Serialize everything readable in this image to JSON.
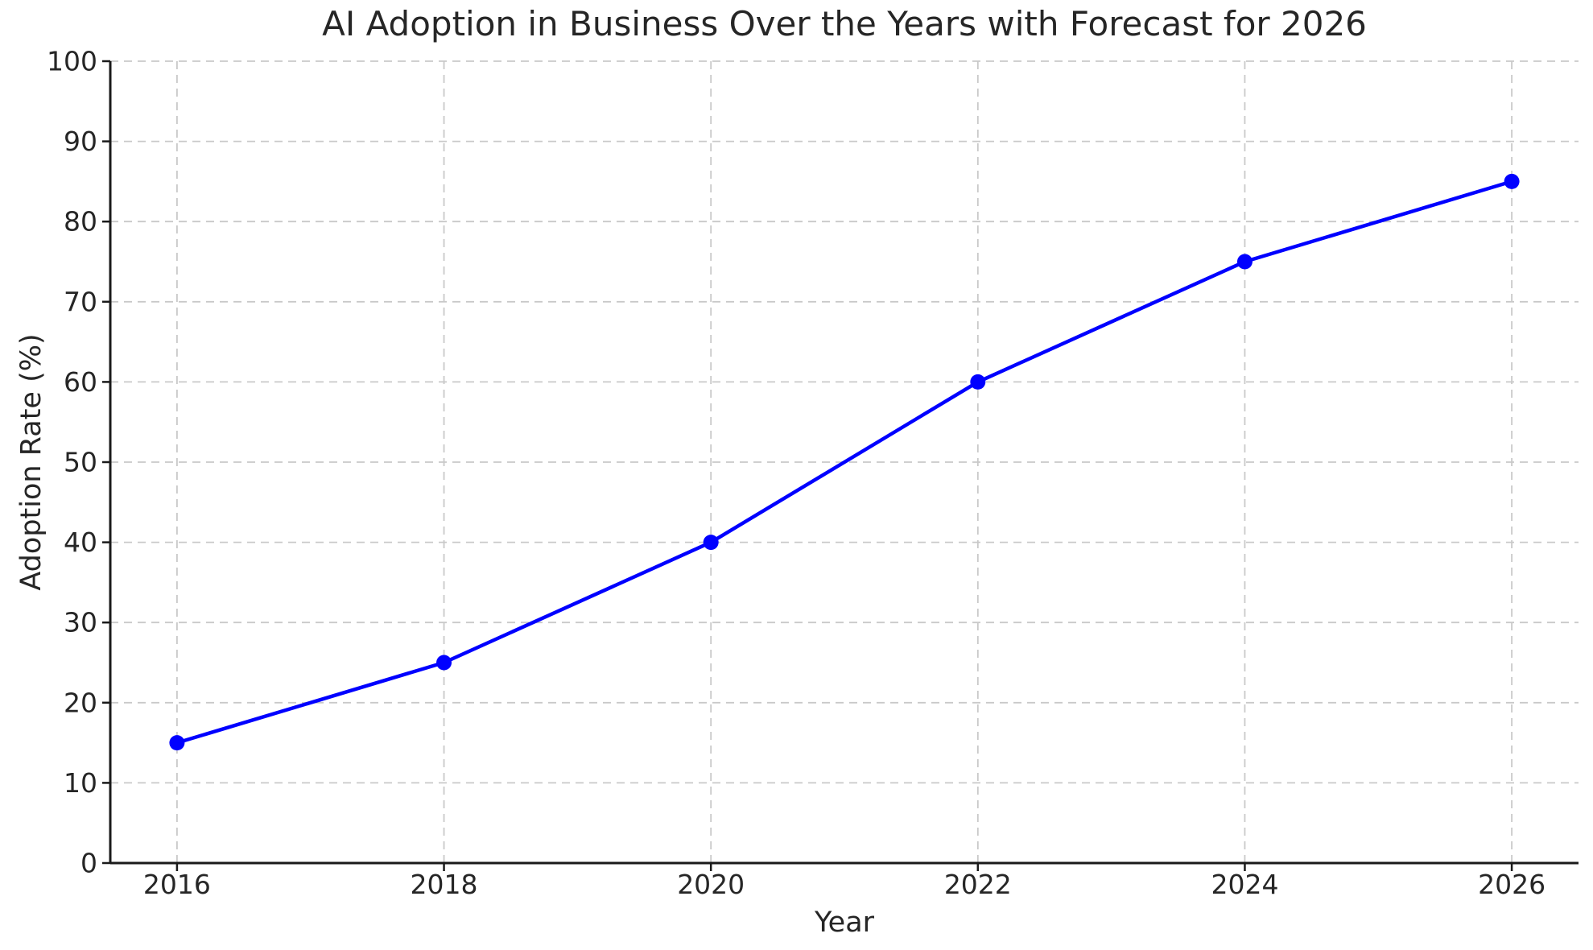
{
  "chart_data": {
    "type": "line",
    "title": "AI Adoption in Business Over the Years with Forecast for 2026",
    "xlabel": "Year",
    "ylabel": "Adoption Rate (%)",
    "x": [
      2016,
      2018,
      2020,
      2022,
      2024,
      2026
    ],
    "values": [
      15,
      25,
      40,
      60,
      75,
      85
    ],
    "xlim": [
      2015.5,
      2026.5
    ],
    "ylim": [
      0,
      100
    ],
    "xticks": [
      2016,
      2018,
      2020,
      2022,
      2024,
      2026
    ],
    "yticks": [
      0,
      10,
      20,
      30,
      40,
      50,
      60,
      70,
      80,
      90,
      100
    ],
    "grid": true,
    "grid_style": "dashed",
    "legend": "none",
    "line_color": "#0000ff",
    "marker": "circle",
    "marker_color": "#0000ff",
    "grid_color": "#c9c9c9",
    "spine_color": "#1a1a1a",
    "text_color": "#262626",
    "background": "#ffffff"
  }
}
